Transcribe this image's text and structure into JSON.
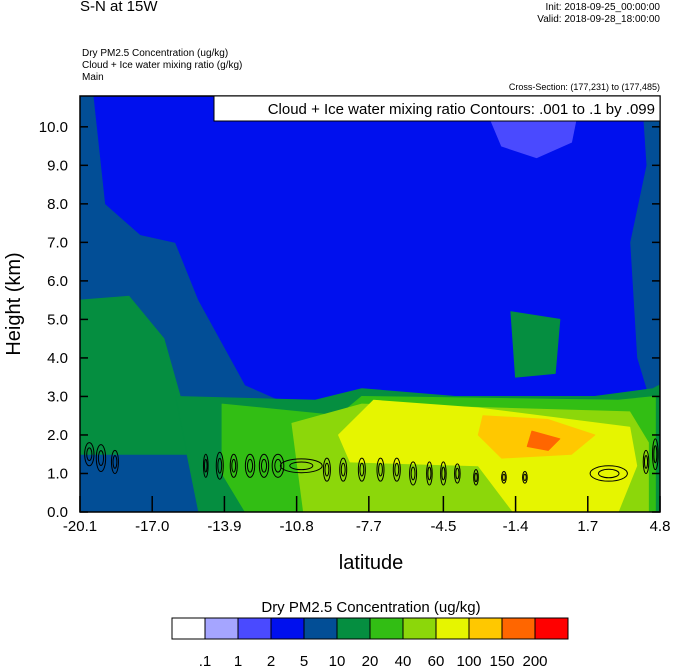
{
  "header": {
    "title": "S-N at 15W",
    "init": "Init: 2018-09-25_00:00:00",
    "valid": "Valid: 2018-09-28_18:00:00",
    "fields": [
      " Dry PM2.5 Concentration   (ug/kg)",
      "Cloud + Ice water mixing ratio   (g/kg)",
      "Main"
    ],
    "cross_section": "Cross-Section: (177,231) to (177,485)"
  },
  "chart_data": {
    "type": "contour",
    "contour_label": "Cloud + Ice water mixing ratio Contours: .001 to .1 by .099",
    "xlabel": "latitude",
    "ylabel": "Height (km)",
    "xlim": [
      -20.1,
      4.8
    ],
    "ylim": [
      0,
      10.8
    ],
    "xticks": [
      "-20.1",
      "-17.0",
      "-13.9",
      "-10.8",
      "-7.7",
      "-4.5",
      "-1.4",
      "1.7",
      "4.8"
    ],
    "yticks": [
      "0.0",
      "1.0",
      "2.0",
      "3.0",
      "4.0",
      "5.0",
      "6.0",
      "7.0",
      "8.0",
      "9.0",
      "10.0"
    ],
    "colorbar": {
      "title": "Dry PM2.5 Concentration  (ug/kg)",
      "levels": [
        ".1",
        "1",
        "2",
        "5",
        "10",
        "20",
        "40",
        "60",
        "100",
        "150",
        "200"
      ],
      "colors": [
        "#ffffff",
        "#a5a5ff",
        "#4a4aff",
        "#0010ee",
        "#024e96",
        "#058e40",
        "#32be14",
        "#8cd70a",
        "#e6f500",
        "#ffc800",
        "#ff6600",
        "#ff0000"
      ]
    },
    "filled_regions": [
      {
        "color": "#024e96",
        "points": [
          [
            -20.1,
            0
          ],
          [
            4.8,
            0
          ],
          [
            4.8,
            10.8
          ],
          [
            -20.1,
            10.8
          ]
        ]
      },
      {
        "color": "#0010ee",
        "points": [
          [
            -19.5,
            10.8
          ],
          [
            4,
            10.8
          ],
          [
            4.2,
            9
          ],
          [
            3.5,
            7
          ],
          [
            3.8,
            4
          ],
          [
            4.3,
            3.0
          ],
          [
            -4,
            2.9
          ],
          [
            -8,
            3.1
          ],
          [
            -10,
            2.5
          ],
          [
            -13,
            3.3
          ],
          [
            -15,
            5.5
          ],
          [
            -16,
            7.0
          ],
          [
            -17.5,
            7.2
          ],
          [
            -19,
            8
          ]
        ]
      },
      {
        "color": "#4a4aff",
        "points": [
          [
            -2.9,
            10.8
          ],
          [
            1.4,
            10.8
          ],
          [
            1.0,
            9.6
          ],
          [
            -0.5,
            9.2
          ],
          [
            -2.0,
            9.5
          ]
        ]
      },
      {
        "color": "#058e40",
        "points": [
          [
            -20.1,
            5.5
          ],
          [
            -18,
            5.6
          ],
          [
            -16.5,
            4.5
          ],
          [
            -15.8,
            3
          ],
          [
            -15,
            1.5
          ],
          [
            -20.1,
            1.5
          ]
        ]
      },
      {
        "color": "#058e40",
        "points": [
          [
            -1.6,
            5.2
          ],
          [
            0.5,
            5.0
          ],
          [
            0.3,
            3.6
          ],
          [
            -1.4,
            3.5
          ]
        ]
      },
      {
        "color": "#058e40",
        "points": [
          [
            -16,
            3
          ],
          [
            -10,
            2.9
          ],
          [
            -8,
            3.2
          ],
          [
            -4,
            3.0
          ],
          [
            2,
            3.0
          ],
          [
            4.5,
            3.2
          ],
          [
            4.8,
            3.3
          ],
          [
            4.8,
            0
          ],
          [
            -15,
            0
          ],
          [
            -15.5,
            1.5
          ]
        ]
      },
      {
        "color": "#32be14",
        "points": [
          [
            -14,
            2.8
          ],
          [
            -9,
            2.5
          ],
          [
            -8,
            3.0
          ],
          [
            3,
            2.9
          ],
          [
            4.6,
            3
          ],
          [
            4.6,
            0
          ],
          [
            -13,
            0
          ],
          [
            -14,
            1
          ]
        ]
      },
      {
        "color": "#8cd70a",
        "points": [
          [
            -11,
            2.3
          ],
          [
            -8,
            2.8
          ],
          [
            3.5,
            2.6
          ],
          [
            4.3,
            1.8
          ],
          [
            4.3,
            0
          ],
          [
            -10.5,
            0
          ]
        ]
      },
      {
        "color": "#e6f500",
        "points": [
          [
            -9,
            2.0
          ],
          [
            -7.5,
            2.9
          ],
          [
            -3,
            2.7
          ],
          [
            3.5,
            2.2
          ],
          [
            3.8,
            1.2
          ],
          [
            3,
            0
          ],
          [
            -1.5,
            0
          ],
          [
            -3,
            1.2
          ],
          [
            -8.5,
            1.3
          ]
        ]
      },
      {
        "color": "#ffc800",
        "points": [
          [
            -2.8,
            2.5
          ],
          [
            0,
            2.4
          ],
          [
            2,
            2.0
          ],
          [
            1,
            1.5
          ],
          [
            -2,
            1.4
          ],
          [
            -3,
            2.0
          ]
        ]
      },
      {
        "color": "#ff6600",
        "points": [
          [
            -0.7,
            2.1
          ],
          [
            0.5,
            1.9
          ],
          [
            0,
            1.6
          ],
          [
            -0.9,
            1.7
          ]
        ]
      }
    ],
    "contours": [
      [
        -19.7,
        1.5,
        0.2,
        0.3
      ],
      [
        -19.2,
        1.4,
        0.2,
        0.35
      ],
      [
        -18.6,
        1.3,
        0.15,
        0.3
      ],
      [
        -14.7,
        1.2,
        0.1,
        0.3
      ],
      [
        -14.1,
        1.2,
        0.15,
        0.35
      ],
      [
        -13.5,
        1.2,
        0.15,
        0.3
      ],
      [
        -12.8,
        1.2,
        0.2,
        0.3
      ],
      [
        -12.2,
        1.2,
        0.2,
        0.3
      ],
      [
        -11.6,
        1.2,
        0.25,
        0.3
      ],
      [
        -10.6,
        1.2,
        0.9,
        0.18
      ],
      [
        -9.5,
        1.1,
        0.15,
        0.3
      ],
      [
        -8.8,
        1.1,
        0.15,
        0.3
      ],
      [
        -8.0,
        1.1,
        0.15,
        0.3
      ],
      [
        -7.2,
        1.1,
        0.15,
        0.3
      ],
      [
        -6.5,
        1.1,
        0.15,
        0.3
      ],
      [
        -5.8,
        1.0,
        0.15,
        0.3
      ],
      [
        -5.1,
        1.0,
        0.12,
        0.3
      ],
      [
        -4.5,
        1.0,
        0.12,
        0.3
      ],
      [
        -3.9,
        1.0,
        0.12,
        0.25
      ],
      [
        -3.1,
        0.9,
        0.1,
        0.2
      ],
      [
        -1.9,
        0.9,
        0.1,
        0.15
      ],
      [
        -1.0,
        0.9,
        0.1,
        0.15
      ],
      [
        2.6,
        1.0,
        0.8,
        0.2
      ],
      [
        4.2,
        1.3,
        0.12,
        0.3
      ],
      [
        4.6,
        1.5,
        0.12,
        0.4
      ]
    ]
  }
}
